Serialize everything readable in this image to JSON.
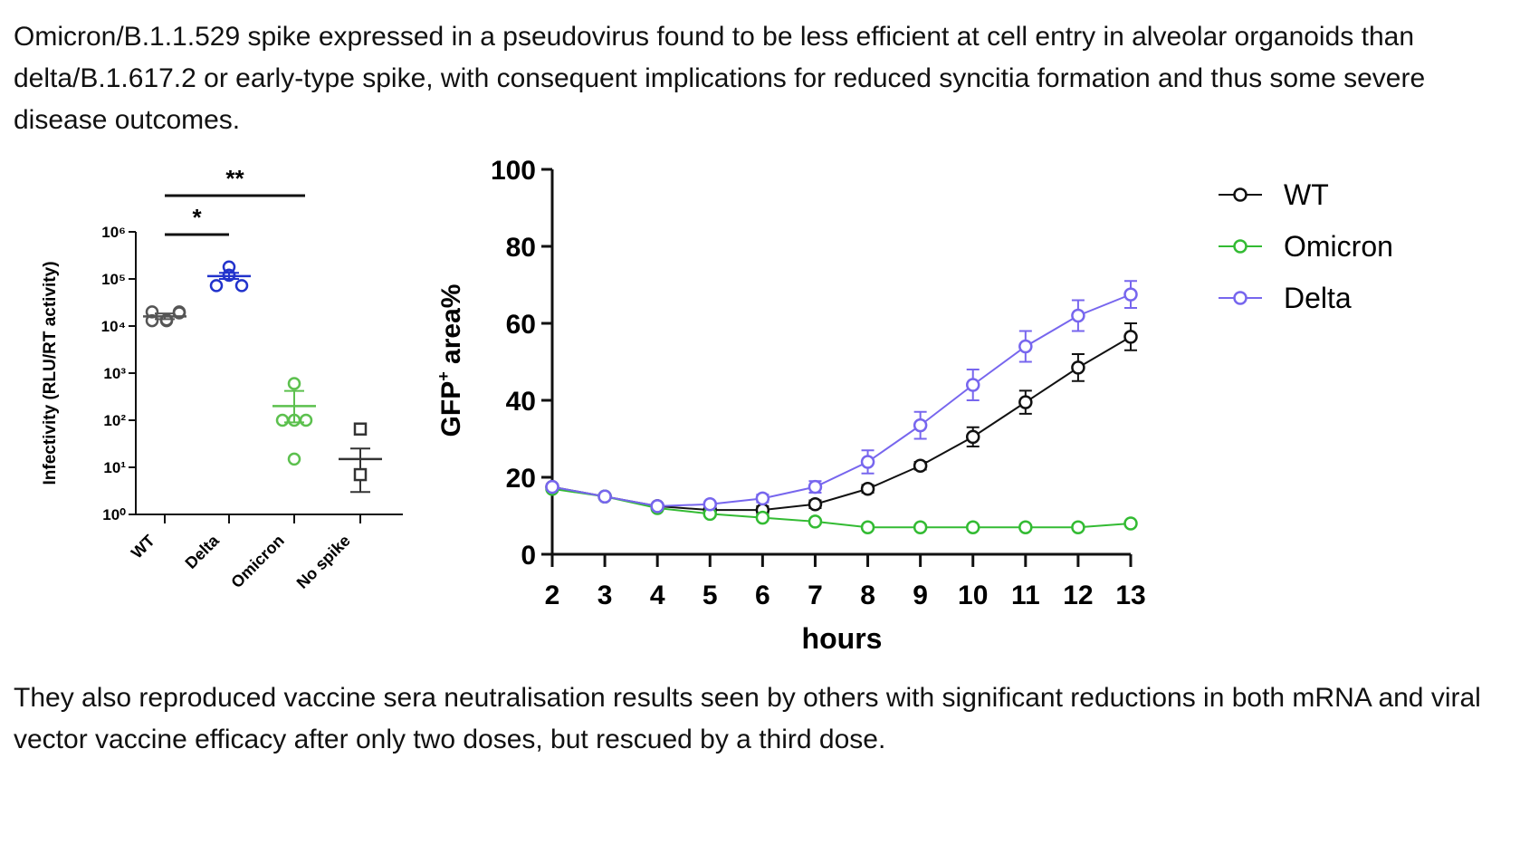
{
  "text": {
    "intro": "Omicron/B.1.1.529 spike expressed in a pseudovirus found to be less efficient at cell entry in alveolar organoids than delta/B.1.617.2 or early-type spike, with consequent implications for reduced syncitia formation and thus some severe disease outcomes.",
    "outro": "They also reproduced vaccine sera neutralisation results seen by others with significant reductions in both mRNA and viral vector vaccine efficacy after only two doses, but rescued by a third dose."
  },
  "chart_data": [
    {
      "type": "scatter",
      "title": "",
      "ylabel": "Infectivity (RLU/RT activity)",
      "yscale": "log",
      "ylim": [
        1,
        1000000
      ],
      "ytick_values": [
        1,
        10,
        100,
        1000,
        10000,
        100000,
        1000000
      ],
      "ytick_labels": [
        "10⁰",
        "10¹",
        "10²",
        "10³",
        "10⁴",
        "10⁵",
        "10⁶"
      ],
      "categories": [
        "WT",
        "Delta",
        "Omicron",
        "No spike"
      ],
      "series": [
        {
          "category": "WT",
          "color": "#555555",
          "marker": "circle",
          "points": [
            13000,
            13500,
            20000,
            20000,
            13000,
            19000
          ],
          "mean": 16000,
          "sem": [
            14000,
            18500
          ]
        },
        {
          "category": "Delta",
          "color": "#2233cc",
          "marker": "circle",
          "points": [
            180000,
            120000,
            72000,
            72000,
            120000
          ],
          "mean": 115000,
          "sem": [
            100000,
            135000
          ]
        },
        {
          "category": "Omicron",
          "color": "#5cc04e",
          "marker": "circle",
          "points": [
            600,
            100,
            100,
            100,
            15
          ],
          "mean": 200,
          "sem": [
            90,
            420
          ]
        },
        {
          "category": "No spike",
          "color": "#333333",
          "marker": "square",
          "points": [
            65,
            7
          ],
          "mean": 15,
          "sem": [
            3,
            25
          ]
        }
      ],
      "significance": [
        {
          "from": "WT",
          "to": "Delta",
          "label": "*"
        },
        {
          "from": "WT",
          "to": "Omicron",
          "label": "**"
        }
      ]
    },
    {
      "type": "line",
      "title": "",
      "xlabel": "hours",
      "ylabel": "GFP⁺ area%",
      "ylabel_main": "GFP",
      "ylabel_sup": "+",
      "ylabel_tail": " area%",
      "xlim": [
        2,
        13
      ],
      "ylim": [
        0,
        100
      ],
      "x": [
        2,
        3,
        4,
        5,
        6,
        7,
        8,
        9,
        10,
        11,
        12,
        13
      ],
      "ytick_values": [
        0,
        20,
        40,
        60,
        80,
        100
      ],
      "legend": "top-right",
      "series": [
        {
          "name": "WT",
          "color": "#111111",
          "values": [
            17.5,
            15,
            12.5,
            11.5,
            11.5,
            13,
            17,
            23,
            30.5,
            39.5,
            48.5,
            56.5
          ],
          "errors": [
            0,
            0,
            0,
            0,
            1,
            1,
            1,
            1,
            2.5,
            3,
            3.5,
            3.5
          ]
        },
        {
          "name": "Omicron",
          "color": "#33bb33",
          "values": [
            17,
            15,
            12,
            10.5,
            9.5,
            8.5,
            7,
            7,
            7,
            7,
            7,
            8
          ],
          "errors": [
            0,
            0,
            0,
            0,
            0,
            0,
            0,
            0,
            0,
            0,
            0,
            0
          ]
        },
        {
          "name": "Delta",
          "color": "#7766ee",
          "values": [
            17.5,
            15,
            12.5,
            13,
            14.5,
            17.5,
            24,
            33.5,
            44,
            54,
            62,
            67.5
          ],
          "errors": [
            0,
            0,
            0,
            0,
            1,
            1.5,
            3,
            3.5,
            4,
            4,
            4,
            3.5
          ]
        }
      ]
    }
  ]
}
